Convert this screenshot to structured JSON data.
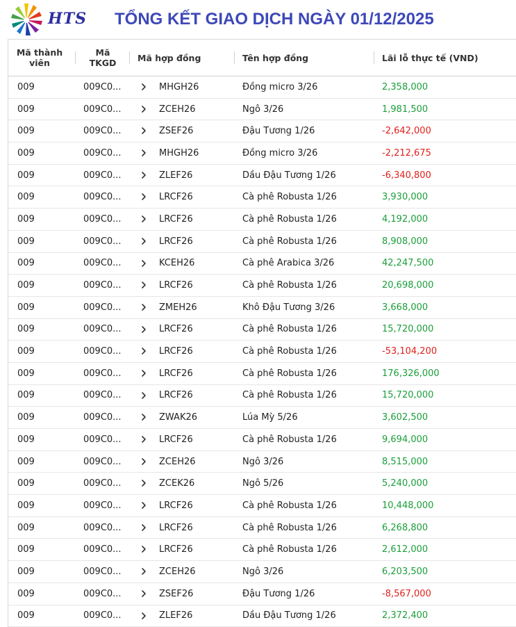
{
  "header": {
    "logo_text": "HTS",
    "title": "TỔNG KẾT GIAO DỊCH NGÀY 01/12/2025"
  },
  "colors": {
    "positive": "#1a9e3a",
    "negative": "#e0201b",
    "title": "#3d48b8"
  },
  "table": {
    "columns": {
      "member_line1": "Mã thành",
      "member_line2": "viên",
      "account_line1": "Mã",
      "account_line2": "TKGD",
      "contract_code": "Mã hợp đồng",
      "contract_name": "Tên hợp đồng",
      "pnl": "Lãi lỗ thực tế (VND)"
    },
    "rows": [
      {
        "member": "009",
        "account": "009C0...",
        "code": "MHGH26",
        "name": "Đồng micro 3/26",
        "pnl": "2,358,000",
        "sign": "pos"
      },
      {
        "member": "009",
        "account": "009C0...",
        "code": "ZCEH26",
        "name": "Ngô 3/26",
        "pnl": "1,981,500",
        "sign": "pos"
      },
      {
        "member": "009",
        "account": "009C0...",
        "code": "ZSEF26",
        "name": "Đậu Tương 1/26",
        "pnl": "-2,642,000",
        "sign": "neg"
      },
      {
        "member": "009",
        "account": "009C0...",
        "code": "MHGH26",
        "name": "Đồng micro 3/26",
        "pnl": "-2,212,675",
        "sign": "neg"
      },
      {
        "member": "009",
        "account": "009C0...",
        "code": "ZLEF26",
        "name": "Dầu Đậu Tương 1/26",
        "pnl": "-6,340,800",
        "sign": "neg"
      },
      {
        "member": "009",
        "account": "009C0...",
        "code": "LRCF26",
        "name": "Cà phê Robusta 1/26",
        "pnl": "3,930,000",
        "sign": "pos"
      },
      {
        "member": "009",
        "account": "009C0...",
        "code": "LRCF26",
        "name": "Cà phê Robusta 1/26",
        "pnl": "4,192,000",
        "sign": "pos"
      },
      {
        "member": "009",
        "account": "009C0...",
        "code": "LRCF26",
        "name": "Cà phê Robusta 1/26",
        "pnl": "8,908,000",
        "sign": "pos"
      },
      {
        "member": "009",
        "account": "009C0...",
        "code": "KCEH26",
        "name": "Cà phê Arabica 3/26",
        "pnl": "42,247,500",
        "sign": "pos"
      },
      {
        "member": "009",
        "account": "009C0...",
        "code": "LRCF26",
        "name": "Cà phê Robusta 1/26",
        "pnl": "20,698,000",
        "sign": "pos"
      },
      {
        "member": "009",
        "account": "009C0...",
        "code": "ZMEH26",
        "name": "Khô Đậu Tương 3/26",
        "pnl": "3,668,000",
        "sign": "pos"
      },
      {
        "member": "009",
        "account": "009C0...",
        "code": "LRCF26",
        "name": "Cà phê Robusta 1/26",
        "pnl": "15,720,000",
        "sign": "pos"
      },
      {
        "member": "009",
        "account": "009C0...",
        "code": "LRCF26",
        "name": "Cà phê Robusta 1/26",
        "pnl": "-53,104,200",
        "sign": "neg"
      },
      {
        "member": "009",
        "account": "009C0...",
        "code": "LRCF26",
        "name": "Cà phê Robusta 1/26",
        "pnl": "176,326,000",
        "sign": "pos"
      },
      {
        "member": "009",
        "account": "009C0...",
        "code": "LRCF26",
        "name": "Cà phê Robusta 1/26",
        "pnl": "15,720,000",
        "sign": "pos"
      },
      {
        "member": "009",
        "account": "009C0...",
        "code": "ZWAK26",
        "name": "Lúa Mỳ 5/26",
        "pnl": "3,602,500",
        "sign": "pos"
      },
      {
        "member": "009",
        "account": "009C0...",
        "code": "LRCF26",
        "name": "Cà phê Robusta 1/26",
        "pnl": "9,694,000",
        "sign": "pos"
      },
      {
        "member": "009",
        "account": "009C0...",
        "code": "ZCEH26",
        "name": "Ngô 3/26",
        "pnl": "8,515,000",
        "sign": "pos"
      },
      {
        "member": "009",
        "account": "009C0...",
        "code": "ZCEK26",
        "name": "Ngô 5/26",
        "pnl": "5,240,000",
        "sign": "pos"
      },
      {
        "member": "009",
        "account": "009C0...",
        "code": "LRCF26",
        "name": "Cà phê Robusta 1/26",
        "pnl": "10,448,000",
        "sign": "pos"
      },
      {
        "member": "009",
        "account": "009C0...",
        "code": "LRCF26",
        "name": "Cà phê Robusta 1/26",
        "pnl": "6,268,800",
        "sign": "pos"
      },
      {
        "member": "009",
        "account": "009C0...",
        "code": "LRCF26",
        "name": "Cà phê Robusta 1/26",
        "pnl": "2,612,000",
        "sign": "pos"
      },
      {
        "member": "009",
        "account": "009C0...",
        "code": "ZCEH26",
        "name": "Ngô 3/26",
        "pnl": "6,203,500",
        "sign": "pos"
      },
      {
        "member": "009",
        "account": "009C0...",
        "code": "ZSEF26",
        "name": "Đậu Tương 1/26",
        "pnl": "-8,567,000",
        "sign": "neg"
      },
      {
        "member": "009",
        "account": "009C0...",
        "code": "ZLEF26",
        "name": "Dầu Đậu Tương 1/26",
        "pnl": "2,372,400",
        "sign": "pos"
      }
    ]
  }
}
